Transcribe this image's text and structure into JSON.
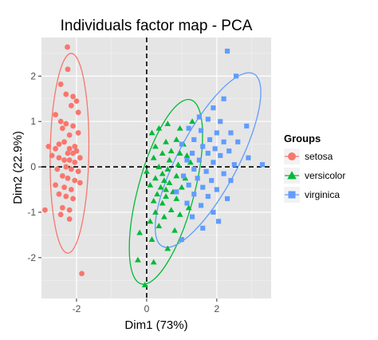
{
  "chart_data": {
    "type": "scatter",
    "title": "Individuals factor map - PCA",
    "xlabel": "Dim1 (73%)",
    "ylabel": "Dim2 (22.9%)",
    "xlim": [
      -3.0,
      3.55
    ],
    "ylim": [
      -2.9,
      2.85
    ],
    "xticks": [
      -2,
      0,
      2
    ],
    "yticks": [
      -2,
      -1,
      0,
      1,
      2
    ],
    "grid": true,
    "reference_lines": {
      "x": 0,
      "y": 0,
      "style": "dashed"
    },
    "legend": {
      "title": "Groups",
      "position": "right"
    },
    "series": [
      {
        "name": "setosa",
        "marker": "circle",
        "color": "#F8766D",
        "points": [
          [
            -2.26,
            2.64
          ],
          [
            -2.45,
            1.82
          ],
          [
            -2.6,
            1.15
          ],
          [
            -2.25,
            2.15
          ],
          [
            -2.3,
            1.6
          ],
          [
            -2.1,
            1.55
          ],
          [
            -2.15,
            1.35
          ],
          [
            -2.0,
            1.45
          ],
          [
            -1.95,
            1.2
          ],
          [
            -2.45,
            1.0
          ],
          [
            -2.3,
            0.95
          ],
          [
            -2.1,
            0.9
          ],
          [
            -2.4,
            0.85
          ],
          [
            -2.2,
            0.7
          ],
          [
            -1.95,
            0.75
          ],
          [
            -2.5,
            0.5
          ],
          [
            -2.35,
            0.55
          ],
          [
            -2.2,
            0.4
          ],
          [
            -2.8,
            0.45
          ],
          [
            -2.6,
            0.4
          ],
          [
            -2.05,
            0.45
          ],
          [
            -2.25,
            0.3
          ],
          [
            -2.1,
            0.3
          ],
          [
            -2.0,
            0.35
          ],
          [
            -2.7,
            0.25
          ],
          [
            -2.5,
            0.2
          ],
          [
            -2.35,
            0.15
          ],
          [
            -2.2,
            0.15
          ],
          [
            -2.05,
            0.1
          ],
          [
            -1.9,
            0.2
          ],
          [
            -2.3,
            0.0
          ],
          [
            -2.55,
            -0.05
          ],
          [
            -2.15,
            -0.05
          ],
          [
            -1.95,
            -0.1
          ],
          [
            -2.4,
            -0.2
          ],
          [
            -2.25,
            -0.25
          ],
          [
            -2.05,
            -0.3
          ],
          [
            -2.6,
            -0.4
          ],
          [
            -2.35,
            -0.45
          ],
          [
            -2.15,
            -0.5
          ],
          [
            -1.9,
            -0.35
          ],
          [
            -2.5,
            -0.6
          ],
          [
            -2.3,
            -0.65
          ],
          [
            -2.1,
            -0.7
          ],
          [
            -2.4,
            -0.9
          ],
          [
            -2.2,
            -0.95
          ],
          [
            -2.45,
            -1.05
          ],
          [
            -2.2,
            -1.15
          ],
          [
            -2.9,
            -0.95
          ],
          [
            -1.85,
            -2.35
          ]
        ],
        "ellipse": {
          "center": [
            -2.2,
            0.3
          ],
          "rx": 0.55,
          "ry": 2.2,
          "rotate_deg": 1
        }
      },
      {
        "name": "versicolor",
        "marker": "triangle",
        "color": "#00BA38",
        "points": [
          [
            1.3,
            1.0
          ],
          [
            0.95,
            0.85
          ],
          [
            0.6,
            0.95
          ],
          [
            0.35,
            0.85
          ],
          [
            0.15,
            0.75
          ],
          [
            0.85,
            0.6
          ],
          [
            0.55,
            0.55
          ],
          [
            1.05,
            0.5
          ],
          [
            0.25,
            0.45
          ],
          [
            0.7,
            0.35
          ],
          [
            0.45,
            0.3
          ],
          [
            0.95,
            0.3
          ],
          [
            1.15,
            0.25
          ],
          [
            0.2,
            0.2
          ],
          [
            0.65,
            0.15
          ],
          [
            0.9,
            0.05
          ],
          [
            0.35,
            0.0
          ],
          [
            1.25,
            0.1
          ],
          [
            0.6,
            -0.05
          ],
          [
            0.0,
            -0.1
          ],
          [
            0.45,
            -0.15
          ],
          [
            0.85,
            -0.2
          ],
          [
            0.25,
            -0.25
          ],
          [
            1.1,
            -0.25
          ],
          [
            0.5,
            -0.3
          ],
          [
            0.65,
            -0.35
          ],
          [
            0.1,
            -0.4
          ],
          [
            0.4,
            -0.45
          ],
          [
            0.55,
            -0.5
          ],
          [
            0.75,
            -0.55
          ],
          [
            1.0,
            -0.45
          ],
          [
            0.3,
            -0.6
          ],
          [
            0.55,
            -0.65
          ],
          [
            0.85,
            -0.7
          ],
          [
            0.2,
            -0.75
          ],
          [
            0.45,
            -0.8
          ],
          [
            1.2,
            -0.9
          ],
          [
            0.7,
            -0.95
          ],
          [
            0.25,
            -1.0
          ],
          [
            0.95,
            -1.05
          ],
          [
            0.5,
            -1.1
          ],
          [
            0.1,
            -1.2
          ],
          [
            0.35,
            -1.3
          ],
          [
            0.8,
            -1.4
          ],
          [
            -0.2,
            -1.45
          ],
          [
            0.15,
            -1.6
          ],
          [
            0.6,
            -1.8
          ],
          [
            -0.25,
            -2.05
          ],
          [
            0.2,
            -2.1
          ],
          [
            -0.05,
            -2.6
          ]
        ],
        "ellipse": {
          "center": [
            0.55,
            -0.55
          ],
          "rx": 0.8,
          "ry": 2.1,
          "rotate_deg": 15
        }
      },
      {
        "name": "virginica",
        "marker": "square",
        "color": "#619CFF",
        "points": [
          [
            2.3,
            2.55
          ],
          [
            2.55,
            2.0
          ],
          [
            2.2,
            1.5
          ],
          [
            1.9,
            1.3
          ],
          [
            1.5,
            1.1
          ],
          [
            1.75,
            1.05
          ],
          [
            2.1,
            1.0
          ],
          [
            2.85,
            0.9
          ],
          [
            1.2,
            0.85
          ],
          [
            1.55,
            0.8
          ],
          [
            2.0,
            0.75
          ],
          [
            2.4,
            0.75
          ],
          [
            1.35,
            0.6
          ],
          [
            1.8,
            0.6
          ],
          [
            2.2,
            0.55
          ],
          [
            2.6,
            0.55
          ],
          [
            1.0,
            0.5
          ],
          [
            1.6,
            0.45
          ],
          [
            1.95,
            0.4
          ],
          [
            2.35,
            0.35
          ],
          [
            1.3,
            0.3
          ],
          [
            1.75,
            0.3
          ],
          [
            2.1,
            0.25
          ],
          [
            2.9,
            0.2
          ],
          [
            1.15,
            0.15
          ],
          [
            1.5,
            0.15
          ],
          [
            1.9,
            0.1
          ],
          [
            2.5,
            0.05
          ],
          [
            3.3,
            0.05
          ],
          [
            1.35,
            -0.05
          ],
          [
            1.7,
            -0.1
          ],
          [
            2.2,
            -0.15
          ],
          [
            1.05,
            -0.2
          ],
          [
            1.45,
            -0.25
          ],
          [
            1.85,
            -0.3
          ],
          [
            2.4,
            -0.3
          ],
          [
            1.2,
            -0.4
          ],
          [
            1.6,
            -0.45
          ],
          [
            2.0,
            -0.5
          ],
          [
            0.85,
            -0.55
          ],
          [
            1.35,
            -0.6
          ],
          [
            1.75,
            -0.65
          ],
          [
            2.3,
            -0.7
          ],
          [
            1.15,
            -0.8
          ],
          [
            1.55,
            -0.85
          ],
          [
            1.9,
            -1.0
          ],
          [
            1.3,
            -1.1
          ],
          [
            2.05,
            -1.2
          ],
          [
            1.6,
            -1.35
          ],
          [
            1.0,
            -1.6
          ]
        ],
        "ellipse": {
          "center": [
            1.75,
            0.15
          ],
          "rx": 0.85,
          "ry": 2.15,
          "rotate_deg": 28
        }
      }
    ]
  }
}
